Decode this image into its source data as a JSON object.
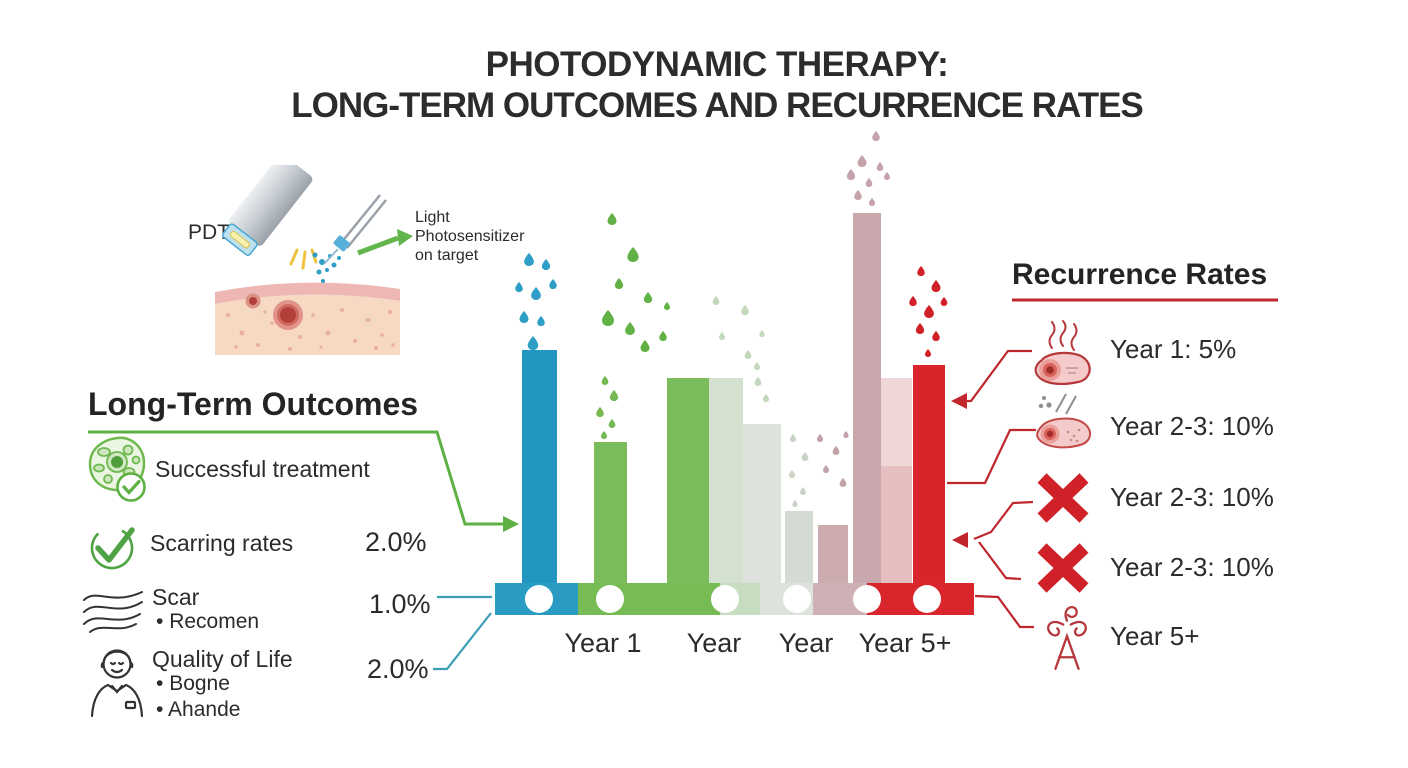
{
  "title": {
    "line1": "PHOTODYNAMIC THERAPY:",
    "line2": "LONG-TERM OUTCOMES AND RECURRENCE RATES"
  },
  "device": {
    "label": "PDT",
    "annotation": [
      "Light",
      "Photosensitizer",
      "on target"
    ]
  },
  "outcomes": {
    "heading": "Long-Term Outcomes",
    "items": [
      {
        "icon": "cell-check-icon",
        "label": "Successful treatment",
        "value": ""
      },
      {
        "icon": "check-icon",
        "label": "Scarring rates",
        "value": "2.0%"
      },
      {
        "icon": "scar-icon",
        "label": "Scar",
        "bullets": [
          "Recomen"
        ],
        "value": "1.0%"
      },
      {
        "icon": "person-icon",
        "label": "Quality of Life",
        "bullets": [
          "Bogne",
          "Ahande"
        ],
        "value": "2.0%"
      }
    ]
  },
  "recurrence": {
    "heading": "Recurrence Rates",
    "items": [
      {
        "icon": "cell-steam-icon",
        "label": "Year 1: 5%"
      },
      {
        "icon": "cell-dots-icon",
        "label": "Year 2-3: 10%"
      },
      {
        "icon": "x-icon",
        "label": "Year 2-3: 10%"
      },
      {
        "icon": "x-icon",
        "label": "Year 2-3: 10%"
      },
      {
        "icon": "flourish-icon",
        "label": "Year 5+"
      }
    ]
  },
  "chart_data": {
    "type": "bar",
    "title": "Photodynamic therapy: long-term outcomes and recurrence by year",
    "categories": [
      "Year 1",
      "Year",
      "Year",
      "Year 5+"
    ],
    "xlabel": "",
    "ylabel": "",
    "ylim": [
      0,
      1
    ],
    "grid": false,
    "bars": [
      {
        "group": "Year 1",
        "color": "#2296c1",
        "value": 0.63
      },
      {
        "group": "Year 1",
        "color": "#7cbd5b",
        "value": 0.38
      },
      {
        "group": "Year",
        "color": "#7cbd5b",
        "value": 0.555
      },
      {
        "group": "Year",
        "color": "#d5e1cf",
        "value": 0.555
      },
      {
        "group": "Year",
        "color": "#dde3dc",
        "value": 0.43
      },
      {
        "group": "Year",
        "color": "#d4dad4",
        "value": 0.195
      },
      {
        "group": "Year 5+",
        "color": "#ccabaf",
        "value": 0.157
      },
      {
        "group": "Year 5+",
        "color": "#c8a7ad",
        "value": 1.0
      },
      {
        "group": "Year 5+",
        "color": "#e5bfc0",
        "value": 0.555
      },
      {
        "group": "Year 5+",
        "color": "#d7252b",
        "value": 0.59
      }
    ],
    "recurrence_rates": [
      {
        "period": "Year 1",
        "rate": "5%"
      },
      {
        "period": "Year 2-3",
        "rate": "10%"
      }
    ],
    "outcome_rates": [
      {
        "label": "Scarring rates",
        "rate": "2.0%"
      },
      {
        "label": "Scar",
        "rate": "1.0%"
      },
      {
        "label": "Quality of Life",
        "rate": "2.0%"
      }
    ],
    "axis_segments": [
      "#2a9cc3",
      "#77bb55",
      "#c7ddc1",
      "#dde3dc",
      "#cfb0b4",
      "#d8262c"
    ],
    "axis_marker_color": "#ffffff",
    "legend_position": "right"
  },
  "colors": {
    "accent_green": "#5cb044",
    "accent_red": "#c0272d",
    "accent_teal": "#3b9fb5",
    "text": "#2b2b2b"
  }
}
